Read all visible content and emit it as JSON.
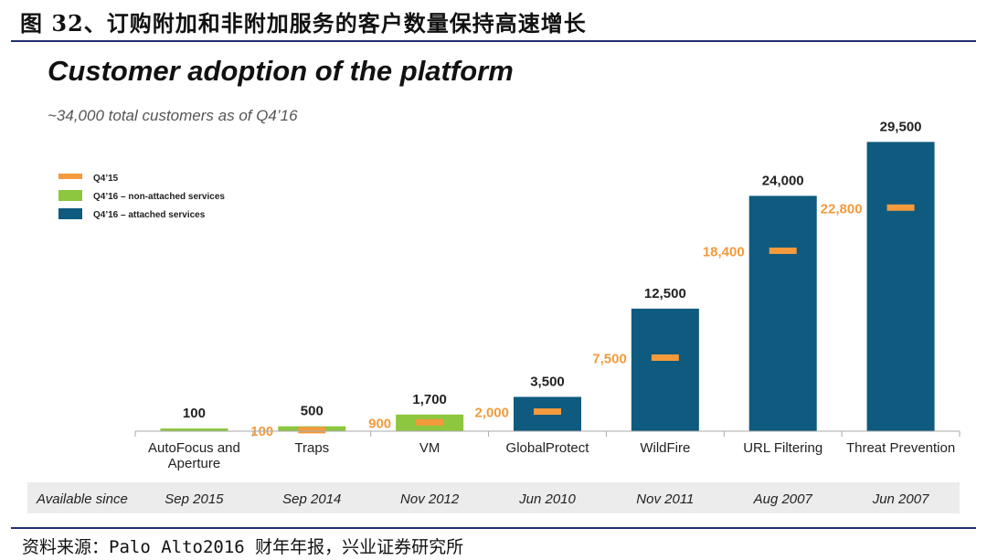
{
  "figure_title": "图 32、订购附加和非附加服务的客户数量保持高速增长",
  "source": "资料来源：Palo Alto2016 财年年报，兴业证券研究所",
  "chart_data": {
    "type": "bar",
    "title": "Customer adoption of the platform",
    "subtitle": "~34,000 total customers as of Q4’16",
    "categories": [
      "AutoFocus and Aperture",
      "Traps",
      "VM",
      "GlobalProtect",
      "WildFire",
      "URL Filtering",
      "Threat Prevention"
    ],
    "category_lines": [
      [
        "AutoFocus and",
        "Aperture"
      ],
      [
        "Traps"
      ],
      [
        "VM"
      ],
      [
        "GlobalProtect"
      ],
      [
        "WildFire"
      ],
      [
        "URL Filtering"
      ],
      [
        "Threat Prevention"
      ]
    ],
    "series": [
      {
        "name": "Q4’16 – non-attached services",
        "color": "#8dc63f",
        "values": [
          100,
          500,
          1700,
          null,
          null,
          null,
          null
        ]
      },
      {
        "name": "Q4’16 – attached services",
        "color": "#0f5a7f",
        "values": [
          null,
          null,
          null,
          3500,
          12500,
          24000,
          29500
        ]
      },
      {
        "name": "Q4’15",
        "color": "#f39a3c",
        "values": [
          null,
          100,
          900,
          2000,
          7500,
          18400,
          22800
        ]
      }
    ],
    "total_labels": [
      "100",
      "500",
      "1,700",
      "3,500",
      "12,500",
      "24,000",
      "29,500"
    ],
    "q415_labels": [
      null,
      "100",
      "900",
      "2,000",
      "7,500",
      "18,400",
      "22,800"
    ],
    "legend": [
      {
        "label": "Q4’15",
        "color": "#f39a3c",
        "kind": "marker"
      },
      {
        "label": "Q4’16 – non-attached services",
        "color": "#8dc63f",
        "kind": "box"
      },
      {
        "label": "Q4’16 – attached services",
        "color": "#0f5a7f",
        "kind": "box"
      }
    ],
    "legend_position": "top-left",
    "ylim": [
      0,
      30000
    ],
    "grid": false,
    "available_since_label": "Available since",
    "available_since": [
      "Sep 2015",
      "Sep 2014",
      "Nov 2012",
      "Jun 2010",
      "Nov 2011",
      "Aug 2007",
      "Jun 2007"
    ]
  }
}
